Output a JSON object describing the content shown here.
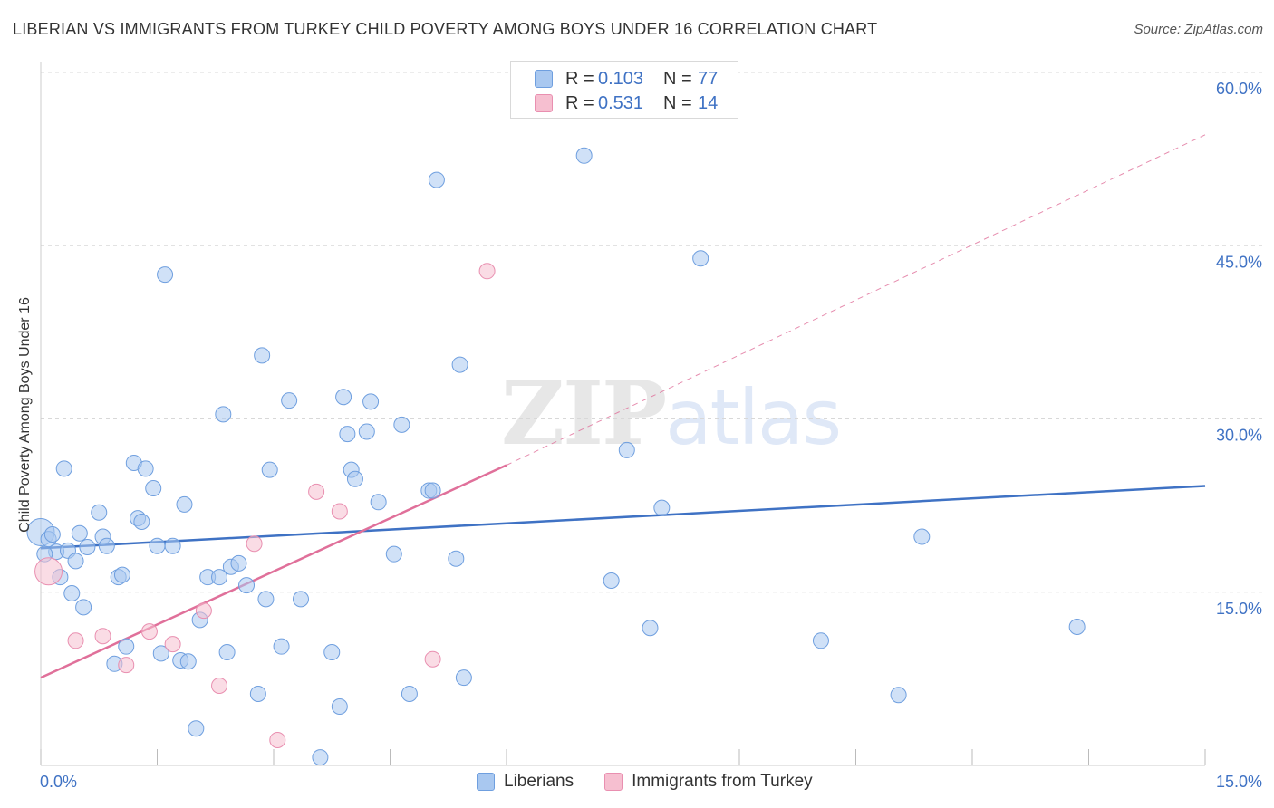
{
  "title": "LIBERIAN VS IMMIGRANTS FROM TURKEY CHILD POVERTY AMONG BOYS UNDER 16 CORRELATION CHART",
  "source": "Source: ZipAtlas.com",
  "watermark": {
    "zip": "ZIP",
    "atlas": "atlas"
  },
  "colors": {
    "liberians_fill": "#a9c8f0",
    "liberians_stroke": "#6f9fdf",
    "liberians_line": "#3f72c4",
    "turkey_fill": "#f6bfd0",
    "turkey_stroke": "#e98fb0",
    "turkey_line": "#e0709a",
    "value_text": "#3f72c4",
    "grid": "#d8d8d8"
  },
  "legend": {
    "rows": [
      {
        "r_label": "R =",
        "r_value": "0.103",
        "n_label": "N =",
        "n_value": "77"
      },
      {
        "r_label": "R =",
        "r_value": "0.531",
        "n_label": "N =",
        "n_value": "14"
      }
    ]
  },
  "chart_data": {
    "type": "scatter",
    "title": "LIBERIAN VS IMMIGRANTS FROM TURKEY CHILD POVERTY AMONG BOYS UNDER 16 CORRELATION CHART",
    "xlabel": "",
    "ylabel": "Child Poverty Among Boys Under 16",
    "xlim": [
      0,
      15
    ],
    "ylim": [
      0,
      60
    ],
    "x_tick_labels": [
      {
        "value": 0,
        "label": "0.0%"
      },
      {
        "value": 15,
        "label": "15.0%"
      }
    ],
    "y_tick_labels": [
      {
        "value": 15,
        "label": "15.0%"
      },
      {
        "value": 30,
        "label": "30.0%"
      },
      {
        "value": 45,
        "label": "45.0%"
      },
      {
        "value": 60,
        "label": "60.0%"
      }
    ],
    "grid": true,
    "legend_position": "top-center",
    "series": [
      {
        "name": "Liberians",
        "R": 0.103,
        "N": 77,
        "trend": {
          "x": [
            0,
            15
          ],
          "y": [
            18.8,
            24.2
          ],
          "style": "solid"
        },
        "points": [
          [
            0.0,
            20.2
          ],
          [
            0.1,
            19.6
          ],
          [
            0.2,
            18.5
          ],
          [
            0.25,
            16.3
          ],
          [
            0.3,
            25.7
          ],
          [
            0.35,
            18.6
          ],
          [
            0.4,
            14.9
          ],
          [
            0.45,
            17.7
          ],
          [
            0.5,
            20.1
          ],
          [
            0.55,
            13.7
          ],
          [
            0.6,
            18.9
          ],
          [
            0.75,
            21.9
          ],
          [
            0.8,
            19.8
          ],
          [
            0.85,
            19.0
          ],
          [
            0.95,
            8.8
          ],
          [
            1.0,
            16.3
          ],
          [
            1.05,
            16.5
          ],
          [
            1.1,
            10.3
          ],
          [
            1.2,
            26.2
          ],
          [
            1.25,
            21.4
          ],
          [
            1.3,
            21.1
          ],
          [
            1.35,
            25.7
          ],
          [
            1.45,
            24.0
          ],
          [
            1.5,
            19.0
          ],
          [
            1.55,
            9.7
          ],
          [
            1.6,
            42.5
          ],
          [
            1.7,
            19.0
          ],
          [
            1.8,
            9.1
          ],
          [
            1.85,
            22.6
          ],
          [
            1.9,
            9.0
          ],
          [
            2.0,
            3.2
          ],
          [
            2.05,
            12.6
          ],
          [
            2.15,
            16.3
          ],
          [
            2.3,
            16.3
          ],
          [
            2.35,
            30.4
          ],
          [
            2.4,
            9.8
          ],
          [
            2.45,
            17.2
          ],
          [
            2.55,
            17.5
          ],
          [
            2.65,
            15.6
          ],
          [
            2.8,
            6.2
          ],
          [
            2.85,
            35.5
          ],
          [
            2.9,
            14.4
          ],
          [
            2.95,
            25.6
          ],
          [
            3.1,
            10.3
          ],
          [
            3.2,
            31.6
          ],
          [
            3.35,
            14.4
          ],
          [
            3.6,
            0.7
          ],
          [
            3.75,
            9.8
          ],
          [
            3.85,
            5.1
          ],
          [
            3.9,
            31.9
          ],
          [
            3.95,
            28.7
          ],
          [
            4.0,
            25.6
          ],
          [
            4.05,
            24.8
          ],
          [
            4.2,
            28.9
          ],
          [
            4.25,
            31.5
          ],
          [
            4.35,
            22.8
          ],
          [
            4.55,
            18.3
          ],
          [
            4.65,
            29.5
          ],
          [
            4.75,
            6.2
          ],
          [
            5.0,
            23.8
          ],
          [
            5.05,
            23.8
          ],
          [
            5.1,
            50.7
          ],
          [
            5.35,
            17.9
          ],
          [
            5.4,
            34.7
          ],
          [
            5.45,
            7.6
          ],
          [
            7.0,
            52.8
          ],
          [
            7.35,
            16.0
          ],
          [
            7.55,
            27.3
          ],
          [
            7.85,
            11.9
          ],
          [
            8.0,
            22.3
          ],
          [
            8.5,
            43.9
          ],
          [
            10.05,
            10.8
          ],
          [
            11.05,
            6.1
          ],
          [
            11.35,
            19.8
          ],
          [
            13.35,
            12.0
          ],
          [
            0.05,
            18.3
          ],
          [
            0.15,
            20.0
          ]
        ]
      },
      {
        "name": "Immigrants from Turkey",
        "R": 0.531,
        "N": 14,
        "trend": {
          "x": [
            0,
            6
          ],
          "y": [
            7.6,
            26.0
          ],
          "style": "solid",
          "extended": {
            "x": [
              6,
              15
            ],
            "y": [
              26.0,
              54.6
            ],
            "style": "dashed"
          }
        },
        "points": [
          [
            0.1,
            16.8
          ],
          [
            0.45,
            10.8
          ],
          [
            0.8,
            11.2
          ],
          [
            1.1,
            8.7
          ],
          [
            1.4,
            11.6
          ],
          [
            1.7,
            10.5
          ],
          [
            2.1,
            13.4
          ],
          [
            2.3,
            6.9
          ],
          [
            2.75,
            19.2
          ],
          [
            3.05,
            2.2
          ],
          [
            3.55,
            23.7
          ],
          [
            3.85,
            22.0
          ],
          [
            5.05,
            9.2
          ],
          [
            5.75,
            42.8
          ]
        ]
      }
    ]
  }
}
